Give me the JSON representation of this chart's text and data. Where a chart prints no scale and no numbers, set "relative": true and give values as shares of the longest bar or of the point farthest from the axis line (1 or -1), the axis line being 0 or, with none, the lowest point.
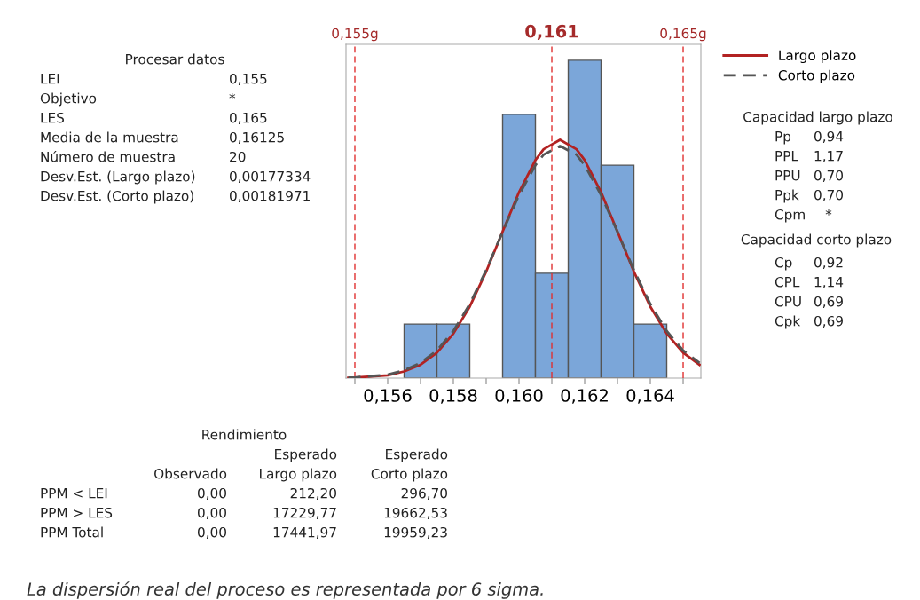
{
  "chart_data": {
    "type": "histogram",
    "relative": true,
    "color": "#7ba6d9",
    "bins": [
      0.1565,
      0.1575,
      0.1585,
      0.1595,
      0.1605,
      0.1615,
      0.1625,
      0.1635,
      0.1645
    ],
    "values": [
      0.17,
      0.17,
      0,
      0.83,
      0.33,
      1,
      0.67,
      0.17
    ],
    "xlim": [
      0.15473,
      0.16554
    ],
    "xticks": [
      {
        "value": 0.155,
        "label": null
      },
      {
        "value": 0.156,
        "label": "0,156"
      },
      {
        "value": 0.157,
        "label": null
      },
      {
        "value": 0.158,
        "label": "0,158"
      },
      {
        "value": 0.159,
        "label": null
      },
      {
        "value": 0.16,
        "label": "0,160"
      },
      {
        "value": 0.161,
        "label": null
      },
      {
        "value": 0.162,
        "label": "0,162"
      },
      {
        "value": 0.163,
        "label": null
      },
      {
        "value": 0.164,
        "label": "0,164"
      },
      {
        "value": 0.165,
        "label": null
      }
    ],
    "tick_labels": "x",
    "grid": false,
    "legend": "right",
    "ref_lines": [
      {
        "axis": "x",
        "value": 0.155,
        "label": "0,155g",
        "color": "#e03030",
        "line_style": "dashed"
      },
      {
        "axis": "x",
        "value": 0.161,
        "label": "0,161",
        "color": "#e03030",
        "line_style": "dashed"
      },
      {
        "axis": "x",
        "value": 0.165,
        "label": "0,165g",
        "color": "#e03030",
        "line_style": "dashed"
      }
    ],
    "series": [
      {
        "name": "Largo plazo",
        "type": "line",
        "color": "#b22222",
        "line_style": "solid",
        "x": [
          0.1548,
          0.155,
          0.156,
          0.1565,
          0.157,
          0.1575,
          0.158,
          0.1585,
          0.159,
          0.1595,
          0.16,
          0.1605,
          0.16075,
          0.16125,
          0.16175,
          0.162,
          0.1625,
          0.163,
          0.1635,
          0.164,
          0.1645,
          0.165,
          0.1655
        ],
        "values": [
          0.001,
          0.0015,
          0.009,
          0.021,
          0.042,
          0.08,
          0.14,
          0.225,
          0.335,
          0.461,
          0.585,
          0.686,
          0.72,
          0.75,
          0.72,
          0.686,
          0.585,
          0.461,
          0.335,
          0.225,
          0.14,
          0.08,
          0.042
        ]
      },
      {
        "name": "Corto plazo",
        "type": "line",
        "color": "#555555",
        "line_style": "dashed",
        "x": [
          0.1548,
          0.155,
          0.156,
          0.1565,
          0.157,
          0.1575,
          0.158,
          0.1585,
          0.159,
          0.1595,
          0.16,
          0.1605,
          0.16075,
          0.16125,
          0.16175,
          0.162,
          0.1625,
          0.163,
          0.1635,
          0.164,
          0.1645,
          0.165,
          0.1655
        ],
        "values": [
          0.0014,
          0.002,
          0.011,
          0.024,
          0.048,
          0.087,
          0.148,
          0.233,
          0.34,
          0.46,
          0.576,
          0.67,
          0.703,
          0.73,
          0.703,
          0.67,
          0.576,
          0.46,
          0.34,
          0.233,
          0.148,
          0.087,
          0.048
        ]
      }
    ],
    "annotations": [
      "Procesar datos",
      "LEI\t0,155",
      "Objetivo\t*",
      "LES\t0,165",
      "Media de la muestra\t0,16125",
      "Número de muestra\t20",
      "Desv.Est. (Largo plazo)\t0,00177334",
      "Desv.Est. (Corto plazo)\t0,00181971",
      "Capacidad largo plazo",
      "Pp\t0,94",
      "PPL\t1,17",
      "PPU\t0,70",
      "Ppk\t0,70",
      "Cpm\t*",
      "Capacidad corto plazo",
      "Cp\t0,92",
      "CPL\t1,14",
      "CPU\t0,69",
      "Cpk\t0,69",
      "Rendimiento",
      "\t\tEsperado\tEsperado",
      "\tObservado\tLargo plazo\tCorto plazo",
      "PPM < LEI\t0,00\t212,20\t296,70",
      "PPM > LES\t0,00\t17229,77\t19662,53",
      "PPM Total\t0,00\t17441,97\t19959,23",
      "La dispersión real del proceso es representada por 6 sigma."
    ]
  }
}
